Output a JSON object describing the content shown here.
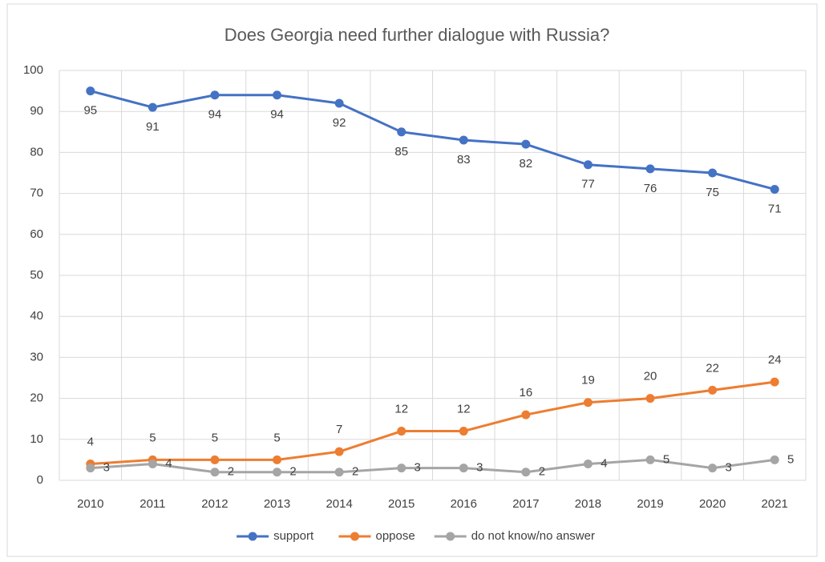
{
  "chart_data": {
    "type": "line",
    "title": "Does Georgia need further dialogue with Russia?",
    "categories": [
      "2010",
      "2011",
      "2012",
      "2013",
      "2014",
      "2015",
      "2016",
      "2017",
      "2018",
      "2019",
      "2020",
      "2021"
    ],
    "series": [
      {
        "name": "support",
        "color": "#4472c4",
        "values": [
          95,
          91,
          94,
          94,
          92,
          85,
          83,
          82,
          77,
          76,
          75,
          71
        ]
      },
      {
        "name": "oppose",
        "color": "#ed7d31",
        "values": [
          4,
          5,
          5,
          5,
          7,
          12,
          12,
          16,
          19,
          20,
          22,
          24
        ]
      },
      {
        "name": "do not know/no answer",
        "color": "#a5a5a5",
        "values": [
          3,
          4,
          2,
          2,
          2,
          3,
          3,
          2,
          4,
          5,
          3,
          5
        ]
      }
    ],
    "ylim": [
      0,
      100
    ],
    "yticks": [
      0,
      10,
      20,
      30,
      40,
      50,
      60,
      70,
      80,
      90,
      100
    ],
    "grid": true,
    "legend": "bottom"
  }
}
